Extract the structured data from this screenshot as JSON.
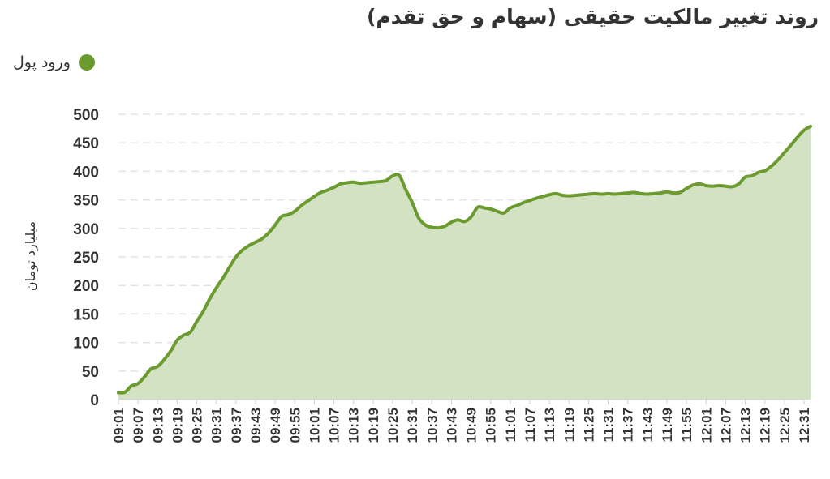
{
  "chart_data": {
    "type": "area",
    "title": "روند تغییر مالکیت حقیقی (سهام و حق تقدم)",
    "ylabel": "میلیارد تومان",
    "legend_position": "top-left",
    "grid": true,
    "ylim": [
      0,
      500
    ],
    "yticks": [
      0,
      50,
      100,
      150,
      200,
      250,
      300,
      350,
      400,
      450,
      500
    ],
    "xticks": [
      "09:01",
      "09:07",
      "09:13",
      "09:19",
      "09:25",
      "09:31",
      "09:37",
      "09:43",
      "09:49",
      "09:55",
      "10:01",
      "10:07",
      "10:13",
      "10:19",
      "10:25",
      "10:31",
      "10:37",
      "10:43",
      "10:49",
      "10:55",
      "11:01",
      "11:07",
      "11:13",
      "11:19",
      "11:25",
      "11:31",
      "11:37",
      "11:43",
      "11:49",
      "11:55",
      "12:01",
      "12:07",
      "12:13",
      "12:19",
      "12:25",
      "12:31"
    ],
    "series": [
      {
        "name": "ورود پول",
        "color": "#6b9a2f",
        "fill": "#d3e2c3",
        "points": [
          [
            "09:01",
            12
          ],
          [
            "09:03",
            13
          ],
          [
            "09:05",
            24
          ],
          [
            "09:07",
            28
          ],
          [
            "09:09",
            40
          ],
          [
            "09:11",
            54
          ],
          [
            "09:13",
            58
          ],
          [
            "09:15",
            70
          ],
          [
            "09:17",
            85
          ],
          [
            "09:19",
            104
          ],
          [
            "09:21",
            113
          ],
          [
            "09:23",
            118
          ],
          [
            "09:25",
            137
          ],
          [
            "09:27",
            155
          ],
          [
            "09:29",
            177
          ],
          [
            "09:31",
            196
          ],
          [
            "09:33",
            213
          ],
          [
            "09:35",
            232
          ],
          [
            "09:37",
            250
          ],
          [
            "09:39",
            262
          ],
          [
            "09:41",
            270
          ],
          [
            "09:43",
            276
          ],
          [
            "09:45",
            282
          ],
          [
            "09:47",
            292
          ],
          [
            "09:49",
            306
          ],
          [
            "09:51",
            321
          ],
          [
            "09:53",
            324
          ],
          [
            "09:55",
            330
          ],
          [
            "09:57",
            340
          ],
          [
            "09:59",
            348
          ],
          [
            "10:01",
            356
          ],
          [
            "10:03",
            363
          ],
          [
            "10:05",
            367
          ],
          [
            "10:07",
            372
          ],
          [
            "10:09",
            378
          ],
          [
            "10:11",
            380
          ],
          [
            "10:13",
            381
          ],
          [
            "10:15",
            379
          ],
          [
            "10:17",
            380
          ],
          [
            "10:19",
            381
          ],
          [
            "10:21",
            382
          ],
          [
            "10:23",
            384
          ],
          [
            "10:25",
            392
          ],
          [
            "10:27",
            393
          ],
          [
            "10:29",
            368
          ],
          [
            "10:31",
            345
          ],
          [
            "10:33",
            318
          ],
          [
            "10:35",
            306
          ],
          [
            "10:37",
            302
          ],
          [
            "10:39",
            301
          ],
          [
            "10:41",
            304
          ],
          [
            "10:43",
            311
          ],
          [
            "10:45",
            315
          ],
          [
            "10:47",
            312
          ],
          [
            "10:49",
            320
          ],
          [
            "10:51",
            337
          ],
          [
            "10:53",
            336
          ],
          [
            "10:55",
            334
          ],
          [
            "10:57",
            330
          ],
          [
            "10:59",
            327
          ],
          [
            "11:01",
            336
          ],
          [
            "11:03",
            340
          ],
          [
            "11:05",
            345
          ],
          [
            "11:07",
            349
          ],
          [
            "11:09",
            353
          ],
          [
            "11:11",
            356
          ],
          [
            "11:13",
            359
          ],
          [
            "11:15",
            361
          ],
          [
            "11:17",
            358
          ],
          [
            "11:19",
            357
          ],
          [
            "11:21",
            358
          ],
          [
            "11:23",
            359
          ],
          [
            "11:25",
            360
          ],
          [
            "11:27",
            361
          ],
          [
            "11:29",
            360
          ],
          [
            "11:31",
            361
          ],
          [
            "11:33",
            360
          ],
          [
            "11:35",
            361
          ],
          [
            "11:37",
            362
          ],
          [
            "11:39",
            363
          ],
          [
            "11:41",
            361
          ],
          [
            "11:43",
            360
          ],
          [
            "11:45",
            361
          ],
          [
            "11:47",
            362
          ],
          [
            "11:49",
            364
          ],
          [
            "11:51",
            362
          ],
          [
            "11:53",
            363
          ],
          [
            "11:55",
            370
          ],
          [
            "11:57",
            376
          ],
          [
            "11:59",
            378
          ],
          [
            "12:01",
            375
          ],
          [
            "12:03",
            374
          ],
          [
            "12:05",
            375
          ],
          [
            "12:07",
            374
          ],
          [
            "12:09",
            373
          ],
          [
            "12:11",
            378
          ],
          [
            "12:13",
            390
          ],
          [
            "12:15",
            392
          ],
          [
            "12:17",
            398
          ],
          [
            "12:19",
            401
          ],
          [
            "12:21",
            409
          ],
          [
            "12:23",
            420
          ],
          [
            "12:25",
            433
          ],
          [
            "12:27",
            446
          ],
          [
            "12:29",
            460
          ],
          [
            "12:31",
            472
          ],
          [
            "12:33",
            479
          ]
        ]
      }
    ]
  }
}
